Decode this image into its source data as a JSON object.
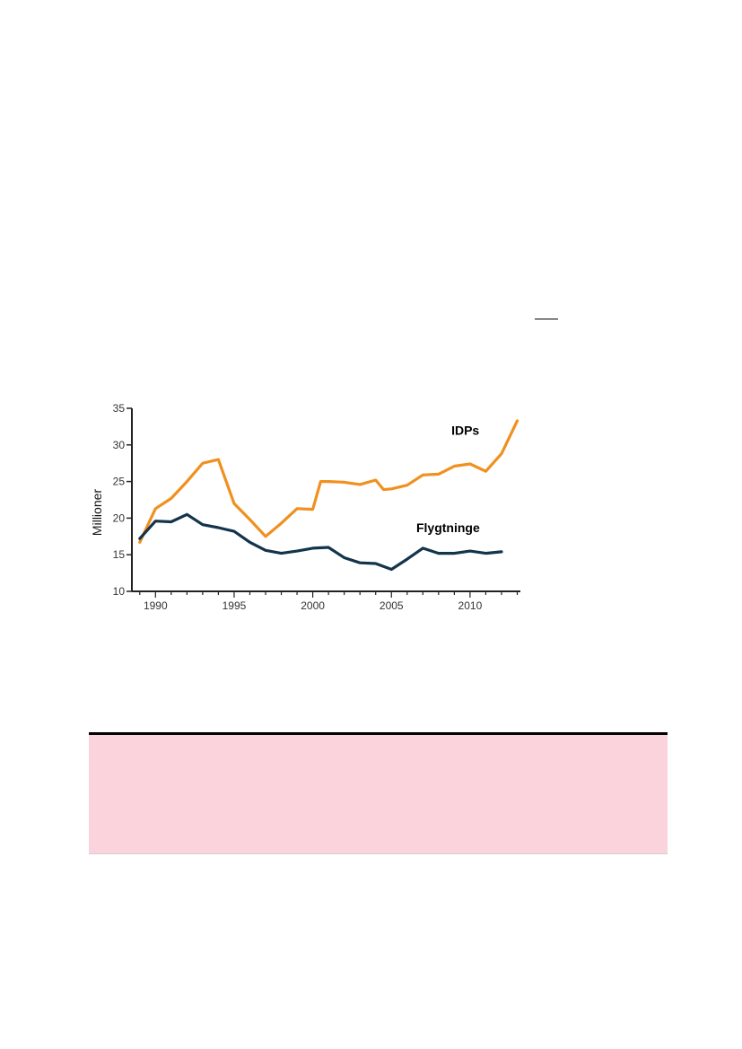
{
  "chart_data": {
    "type": "line",
    "ylabel": "Millioner",
    "xlabel": "",
    "xlim": [
      1988.5,
      2013.2
    ],
    "ylim": [
      10,
      35
    ],
    "yticks": [
      10,
      15,
      20,
      25,
      30,
      35
    ],
    "xticks": [
      1990,
      1995,
      2000,
      2005,
      2010
    ],
    "grid": false,
    "series": [
      {
        "name": "IDPs",
        "color": "#f0901f",
        "points": [
          [
            1989,
            16.7
          ],
          [
            1990,
            21.3
          ],
          [
            1991,
            22.7
          ],
          [
            1992,
            25.0
          ],
          [
            1993,
            27.5
          ],
          [
            1994,
            28.0
          ],
          [
            1995,
            22.0
          ],
          [
            1996,
            19.8
          ],
          [
            1997,
            17.5
          ],
          [
            1998,
            19.3
          ],
          [
            1999,
            21.3
          ],
          [
            2000,
            21.2
          ],
          [
            2000.5,
            25.0
          ],
          [
            2001,
            25.0
          ],
          [
            2002,
            24.9
          ],
          [
            2003,
            24.6
          ],
          [
            2004,
            25.2
          ],
          [
            2004.5,
            23.9
          ],
          [
            2005,
            24.0
          ],
          [
            2006,
            24.5
          ],
          [
            2007,
            25.9
          ],
          [
            2008,
            26.0
          ],
          [
            2009,
            27.1
          ],
          [
            2010,
            27.4
          ],
          [
            2011,
            26.4
          ],
          [
            2012,
            28.8
          ],
          [
            2013,
            33.3
          ]
        ]
      },
      {
        "name": "Flygtninge",
        "color": "#13344d",
        "points": [
          [
            1989,
            17.2
          ],
          [
            1990,
            19.6
          ],
          [
            1991,
            19.5
          ],
          [
            1992,
            20.5
          ],
          [
            1993,
            19.1
          ],
          [
            1994,
            18.7
          ],
          [
            1995,
            18.2
          ],
          [
            1996,
            16.7
          ],
          [
            1997,
            15.6
          ],
          [
            1998,
            15.2
          ],
          [
            1999,
            15.5
          ],
          [
            2000,
            15.9
          ],
          [
            2001,
            16.0
          ],
          [
            2002,
            14.6
          ],
          [
            2003,
            13.9
          ],
          [
            2004,
            13.8
          ],
          [
            2005,
            13.0
          ],
          [
            2006,
            14.4
          ],
          [
            2007,
            15.9
          ],
          [
            2008,
            15.2
          ],
          [
            2009,
            15.2
          ],
          [
            2010,
            15.5
          ],
          [
            2011,
            15.2
          ],
          [
            2012,
            15.4
          ]
        ]
      }
    ]
  }
}
